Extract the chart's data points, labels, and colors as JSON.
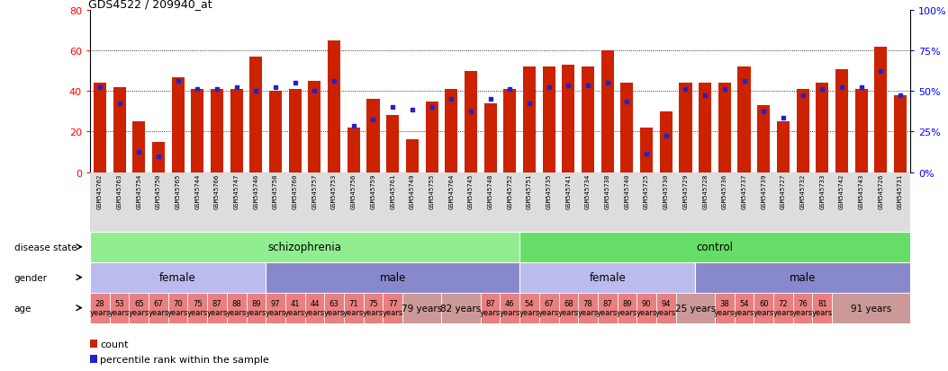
{
  "title": "GDS4522 / 209940_at",
  "samples": [
    "GSM545762",
    "GSM545763",
    "GSM545754",
    "GSM545750",
    "GSM545765",
    "GSM545744",
    "GSM545766",
    "GSM545747",
    "GSM545746",
    "GSM545758",
    "GSM545760",
    "GSM545757",
    "GSM545753",
    "GSM545756",
    "GSM545759",
    "GSM545761",
    "GSM545749",
    "GSM545755",
    "GSM545764",
    "GSM545745",
    "GSM545748",
    "GSM545752",
    "GSM545751",
    "GSM545735",
    "GSM545741",
    "GSM545734",
    "GSM545738",
    "GSM545740",
    "GSM545725",
    "GSM545730",
    "GSM545729",
    "GSM545728",
    "GSM545736",
    "GSM545737",
    "GSM545739",
    "GSM545727",
    "GSM545732",
    "GSM545733",
    "GSM545742",
    "GSM545743",
    "GSM545726",
    "GSM545731"
  ],
  "bar_values": [
    44,
    42,
    25,
    15,
    47,
    41,
    41,
    41,
    57,
    40,
    41,
    45,
    65,
    22,
    36,
    28,
    16,
    35,
    41,
    50,
    34,
    41,
    52,
    52,
    53,
    52,
    60,
    44,
    22,
    30,
    44,
    44,
    44,
    52,
    33,
    25,
    41,
    44,
    51,
    41,
    62,
    38
  ],
  "dot_values": [
    42,
    34,
    10,
    8,
    45,
    41,
    41,
    42,
    40,
    42,
    44,
    40,
    45,
    23,
    26,
    32,
    31,
    32,
    36,
    30,
    36,
    41,
    34,
    42,
    43,
    43,
    44,
    35,
    9,
    18,
    41,
    38,
    41,
    45,
    30,
    27,
    38,
    41,
    42,
    42,
    50,
    38
  ],
  "disease_groups": [
    {
      "label": "schizophrenia",
      "start": 0,
      "end": 22,
      "color": "#90EE90"
    },
    {
      "label": "control",
      "start": 22,
      "end": 42,
      "color": "#66DD66"
    }
  ],
  "gender_groups": [
    {
      "label": "female",
      "start": 0,
      "end": 9,
      "color": "#BBBBEE"
    },
    {
      "label": "male",
      "start": 9,
      "end": 22,
      "color": "#8888CC"
    },
    {
      "label": "female",
      "start": 22,
      "end": 31,
      "color": "#BBBBEE"
    },
    {
      "label": "male",
      "start": 31,
      "end": 42,
      "color": "#8888CC"
    }
  ],
  "age_data": [
    {
      "text": "28\nyears",
      "start": 0,
      "end": 1,
      "wide": false
    },
    {
      "text": "53\nyears",
      "start": 1,
      "end": 2,
      "wide": false
    },
    {
      "text": "65\nyears",
      "start": 2,
      "end": 3,
      "wide": false
    },
    {
      "text": "67\nyears",
      "start": 3,
      "end": 4,
      "wide": false
    },
    {
      "text": "70\nyears",
      "start": 4,
      "end": 5,
      "wide": false
    },
    {
      "text": "75\nyears",
      "start": 5,
      "end": 6,
      "wide": false
    },
    {
      "text": "87\nyears",
      "start": 6,
      "end": 7,
      "wide": false
    },
    {
      "text": "88\nyears",
      "start": 7,
      "end": 8,
      "wide": false
    },
    {
      "text": "89\nyears",
      "start": 8,
      "end": 9,
      "wide": false
    },
    {
      "text": "97\nyears",
      "start": 9,
      "end": 10,
      "wide": false
    },
    {
      "text": "41\nyears",
      "start": 10,
      "end": 11,
      "wide": false
    },
    {
      "text": "44\nyears",
      "start": 11,
      "end": 12,
      "wide": false
    },
    {
      "text": "63\nyears",
      "start": 12,
      "end": 13,
      "wide": false
    },
    {
      "text": "71\nyears",
      "start": 13,
      "end": 14,
      "wide": false
    },
    {
      "text": "75\nyears",
      "start": 14,
      "end": 15,
      "wide": false
    },
    {
      "text": "77\nyears",
      "start": 15,
      "end": 16,
      "wide": false
    },
    {
      "text": "79 years",
      "start": 16,
      "end": 18,
      "wide": true
    },
    {
      "text": "82 years",
      "start": 18,
      "end": 20,
      "wide": true
    },
    {
      "text": "87\nyears",
      "start": 20,
      "end": 21,
      "wide": false
    },
    {
      "text": "46\nyears",
      "start": 21,
      "end": 22,
      "wide": false
    },
    {
      "text": "54\nyears",
      "start": 22,
      "end": 23,
      "wide": false
    },
    {
      "text": "67\nyears",
      "start": 23,
      "end": 24,
      "wide": false
    },
    {
      "text": "68\nyears",
      "start": 24,
      "end": 25,
      "wide": false
    },
    {
      "text": "78\nyears",
      "start": 25,
      "end": 26,
      "wide": false
    },
    {
      "text": "87\nyears",
      "start": 26,
      "end": 27,
      "wide": false
    },
    {
      "text": "89\nyears",
      "start": 27,
      "end": 28,
      "wide": false
    },
    {
      "text": "90\nyears",
      "start": 28,
      "end": 29,
      "wide": false
    },
    {
      "text": "94\nyears",
      "start": 29,
      "end": 30,
      "wide": false
    },
    {
      "text": "25 years",
      "start": 30,
      "end": 32,
      "wide": true
    },
    {
      "text": "38\nyears",
      "start": 32,
      "end": 33,
      "wide": false
    },
    {
      "text": "54\nyears",
      "start": 33,
      "end": 34,
      "wide": false
    },
    {
      "text": "60\nyears",
      "start": 34,
      "end": 35,
      "wide": false
    },
    {
      "text": "72\nyears",
      "start": 35,
      "end": 36,
      "wide": false
    },
    {
      "text": "76\nyears",
      "start": 36,
      "end": 37,
      "wide": false
    },
    {
      "text": "81\nyears",
      "start": 37,
      "end": 38,
      "wide": false
    },
    {
      "text": "91 years",
      "start": 38,
      "end": 42,
      "wide": true
    }
  ],
  "bar_color": "#CC2200",
  "dot_color": "#2222CC",
  "ylim_left": [
    0,
    80
  ],
  "ylim_right": [
    0,
    100
  ],
  "yticks_left": [
    0,
    20,
    40,
    60,
    80
  ],
  "yticks_right": [
    0,
    25,
    50,
    75,
    100
  ],
  "grid_values": [
    20,
    40,
    60
  ],
  "age_color": "#E88080",
  "age_color_wide": "#CC9999",
  "xticklabel_bg": "#DDDDDD"
}
